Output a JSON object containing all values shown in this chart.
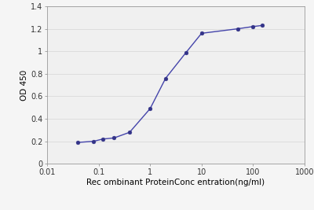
{
  "x_data": [
    0.04,
    0.08,
    0.12,
    0.2,
    0.4,
    1.0,
    2.0,
    5.0,
    10.0,
    50.0,
    100.0,
    150.0
  ],
  "y_data": [
    0.19,
    0.2,
    0.22,
    0.23,
    0.28,
    0.49,
    0.76,
    0.99,
    1.16,
    1.2,
    1.22,
    1.23
  ],
  "line_color": "#4444aa",
  "marker_color": "#333388",
  "marker_size": 3.5,
  "line_width": 1.0,
  "xlabel": "Rec ombinant ProteinConc entration(ng/ml)",
  "ylabel": "OD 450",
  "xlim": [
    0.01,
    1000
  ],
  "ylim": [
    0,
    1.4
  ],
  "yticks": [
    0,
    0.2,
    0.4,
    0.6,
    0.8,
    1.0,
    1.2,
    1.4
  ],
  "ytick_labels": [
    "0",
    "0.2",
    "0.4",
    "0.6",
    "0.8",
    "1",
    "1.2",
    "1.4"
  ],
  "xtick_positions": [
    0.01,
    0.1,
    1,
    10,
    100,
    1000
  ],
  "xtick_labels": [
    "0.01",
    "0.1",
    "1",
    "10",
    "100",
    "1000"
  ],
  "background_color": "#f5f5f5",
  "plot_bg_color": "#f0f0f0",
  "grid_color": "#dddddd",
  "font_size_tick": 7,
  "font_size_label": 7.5,
  "spine_color": "#999999"
}
